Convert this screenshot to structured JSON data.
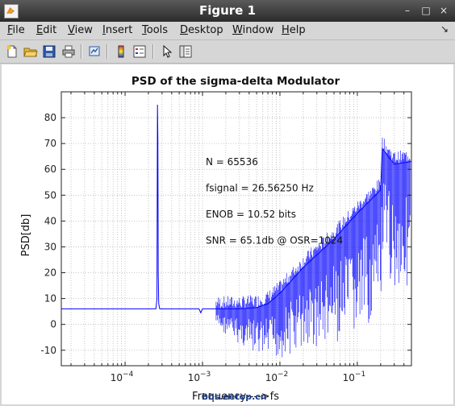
{
  "window": {
    "title": "Figure 1",
    "controls": {
      "minimize": "–",
      "maximize": "□",
      "close": "×"
    }
  },
  "menubar": {
    "items": [
      {
        "label": "File",
        "u": "F",
        "rest": "ile"
      },
      {
        "label": "Edit",
        "u": "E",
        "rest": "dit"
      },
      {
        "label": "View",
        "u": "V",
        "rest": "iew"
      },
      {
        "label": "Insert",
        "u": "I",
        "rest": "nsert"
      },
      {
        "label": "Tools",
        "u": "T",
        "rest": "ools"
      },
      {
        "label": "Desktop",
        "u": "D",
        "rest": "esktop"
      },
      {
        "label": "Window",
        "u": "W",
        "rest": "indow"
      },
      {
        "label": "Help",
        "u": "H",
        "rest": "elp"
      }
    ],
    "dock_icon": "dock-arrow-icon"
  },
  "toolbar": {
    "icons": [
      "new-figure-icon",
      "open-file-icon",
      "save-icon",
      "print-icon",
      "link-plot-icon",
      "colorbar-icon",
      "legend-icon",
      "edit-plot-icon",
      "property-editor-icon"
    ]
  },
  "chart_data": {
    "type": "line",
    "title": "PSD of the sigma-delta Modulator",
    "xlabel": "Frequency---->fs",
    "ylabel": "PSD[db]",
    "xscale": "log",
    "xlim": [
      1.5e-05,
      0.5
    ],
    "ylim": [
      -16,
      90
    ],
    "grid": true,
    "xticks": [
      {
        "value": 0.0001,
        "base": "10",
        "exp": "−4"
      },
      {
        "value": 0.001,
        "base": "10",
        "exp": "−3"
      },
      {
        "value": 0.01,
        "base": "10",
        "exp": "−2"
      },
      {
        "value": 0.1,
        "base": "10",
        "exp": "−1"
      }
    ],
    "yticks": [
      -10,
      0,
      10,
      20,
      30,
      40,
      50,
      60,
      70,
      80
    ],
    "line_color": "#0000ff",
    "series": [
      {
        "x": [
          1.5e-05,
          0.0002,
          0.00025,
          0.000258,
          0.000262,
          0.000265,
          0.000268,
          0.000272,
          0.00028,
          0.0003,
          0.0005,
          0.0009,
          0.00095,
          0.001,
          0.002,
          0.003,
          0.005,
          0.007,
          0.01,
          0.02,
          0.05,
          0.1,
          0.2,
          0.21,
          0.3,
          0.5
        ],
        "y": [
          6,
          6,
          6,
          10,
          85,
          72,
          20,
          8,
          6,
          6,
          6,
          6,
          4.5,
          6,
          6,
          6,
          6.5,
          8,
          12,
          22,
          33,
          43,
          52,
          68,
          62,
          63
        ]
      }
    ],
    "annotations": [
      "N = 65536",
      "fsignal = 26.56250 Hz",
      "ENOB = 10.52 bits",
      "SNR = 65.1db @ OSR=1024"
    ]
  },
  "watermark": "bbs.eetop.cn"
}
